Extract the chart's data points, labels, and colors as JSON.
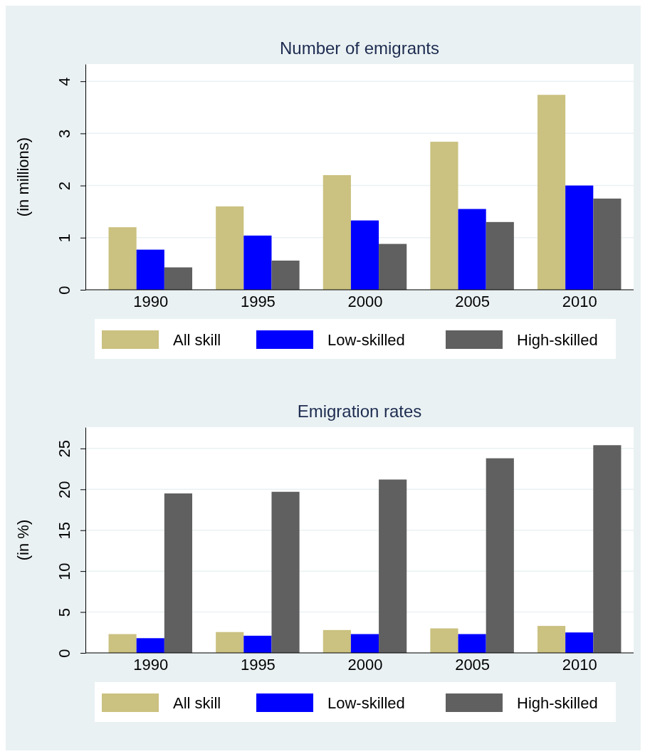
{
  "chart_data": [
    {
      "type": "bar",
      "title": "Number of emigrants",
      "ylabel": "(in millions)",
      "categories": [
        "1990",
        "1995",
        "2000",
        "2005",
        "2010"
      ],
      "series": [
        {
          "name": "All skill",
          "color": "#cbc180",
          "values": [
            1.2,
            1.6,
            2.2,
            2.84,
            3.74
          ]
        },
        {
          "name": "Low-skilled",
          "color": "#0000ff",
          "values": [
            0.77,
            1.04,
            1.33,
            1.55,
            2.0
          ]
        },
        {
          "name": "High-skilled",
          "color": "#606060",
          "values": [
            0.43,
            0.56,
            0.88,
            1.3,
            1.75
          ]
        }
      ],
      "ylim": [
        0,
        4.33
      ],
      "yticks": [
        0,
        1,
        2,
        3,
        4
      ],
      "grid": "y",
      "legend": "bottom"
    },
    {
      "type": "bar",
      "title": "Emigration rates",
      "ylabel": "(in %)",
      "categories": [
        "1990",
        "1995",
        "2000",
        "2005",
        "2010"
      ],
      "series": [
        {
          "name": "All skill",
          "color": "#cbc180",
          "values": [
            2.3,
            2.55,
            2.8,
            3.0,
            3.3
          ]
        },
        {
          "name": "Low-skilled",
          "color": "#0000ff",
          "values": [
            1.8,
            2.1,
            2.3,
            2.3,
            2.5
          ]
        },
        {
          "name": "High-skilled",
          "color": "#606060",
          "values": [
            19.5,
            19.7,
            21.2,
            23.8,
            25.4
          ]
        }
      ],
      "ylim": [
        0,
        27.6
      ],
      "yticks": [
        0,
        5,
        10,
        15,
        20,
        25
      ],
      "grid": "y",
      "legend": "bottom"
    }
  ]
}
